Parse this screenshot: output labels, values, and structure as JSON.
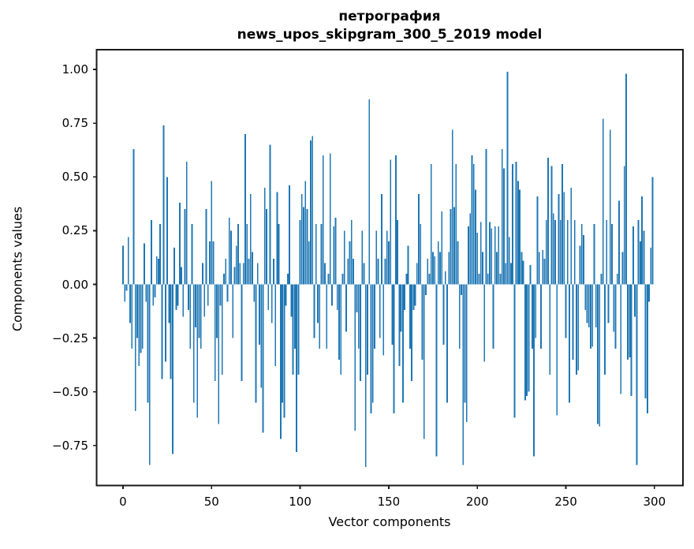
{
  "figure": {
    "title_line1": "петрография",
    "title_line2": "news_upos_skipgram_300_5_2019 model"
  },
  "chart_data": {
    "type": "bar",
    "title": "петрография",
    "subtitle": "news_upos_skipgram_300_5_2019 model",
    "xlabel": "Vector components",
    "ylabel": "Components values",
    "x_tick_values": [
      0,
      50,
      100,
      150,
      200,
      250,
      300
    ],
    "x_tick_labels": [
      "0",
      "50",
      "100",
      "150",
      "200",
      "250",
      "300"
    ],
    "y_tick_values": [
      1.0,
      0.75,
      0.5,
      0.25,
      0.0,
      -0.25,
      -0.5,
      -0.75
    ],
    "y_tick_labels": [
      "1.00",
      "0.75",
      "0.50",
      "0.25",
      "0.00",
      "−0.25",
      "−0.50",
      "−0.75"
    ],
    "xlim": [
      -14.9,
      316.1
    ],
    "ylim": [
      -0.936,
      1.092
    ],
    "grid": false,
    "legend": "none",
    "bar_color": "#1f77b4",
    "bar_width": 0.8,
    "x_is_index": true,
    "values": [
      0.18,
      -0.08,
      -0.03,
      0.22,
      -0.18,
      -0.3,
      0.63,
      -0.59,
      -0.25,
      -0.38,
      -0.32,
      -0.3,
      0.19,
      -0.08,
      -0.55,
      -0.84,
      0.3,
      -0.1,
      -0.06,
      0.13,
      0.12,
      0.28,
      -0.44,
      0.74,
      -0.36,
      0.5,
      -0.18,
      -0.44,
      -0.79,
      0.17,
      -0.12,
      -0.1,
      0.38,
      0.08,
      -0.15,
      0.35,
      0.57,
      -0.12,
      -0.3,
      0.28,
      -0.55,
      -0.2,
      -0.62,
      -0.25,
      -0.3,
      0.1,
      -0.15,
      0.35,
      -0.1,
      0.2,
      0.48,
      0.2,
      -0.45,
      -0.25,
      -0.65,
      -0.1,
      -0.42,
      0.05,
      0.12,
      -0.08,
      0.31,
      0.25,
      -0.25,
      0.08,
      0.18,
      0.28,
      0.1,
      -0.45,
      0.1,
      0.7,
      0.28,
      0.12,
      0.42,
      0.15,
      -0.08,
      -0.55,
      0.1,
      -0.28,
      -0.48,
      -0.69,
      0.45,
      0.35,
      -0.12,
      0.65,
      -0.18,
      0.12,
      -0.38,
      0.43,
      0.28,
      -0.72,
      -0.55,
      -0.62,
      -0.1,
      0.05,
      0.46,
      -0.15,
      -0.42,
      -0.3,
      -0.78,
      -0.42,
      0.3,
      0.42,
      0.36,
      0.48,
      0.35,
      0.2,
      0.67,
      0.69,
      -0.25,
      0.28,
      -0.18,
      -0.3,
      0.28,
      0.6,
      0.1,
      -0.3,
      0.05,
      0.61,
      -0.1,
      0.27,
      0.31,
      -0.12,
      -0.35,
      -0.42,
      0.05,
      0.25,
      -0.22,
      0.12,
      0.2,
      0.3,
      0.12,
      -0.68,
      -0.13,
      -0.3,
      -0.45,
      0.25,
      0.1,
      -0.85,
      -0.42,
      0.86,
      -0.6,
      -0.55,
      -0.3,
      0.25,
      0.12,
      -0.25,
      0.42,
      -0.33,
      0.12,
      0.25,
      0.2,
      0.58,
      -0.28,
      -0.6,
      0.6,
      0.3,
      -0.38,
      -0.22,
      -0.55,
      -0.12,
      0.05,
      0.18,
      -0.3,
      -0.45,
      -0.12,
      -0.1,
      0.1,
      0.42,
      0.28,
      -0.35,
      -0.72,
      -0.05,
      0.12,
      0.05,
      0.56,
      0.15,
      0.13,
      -0.8,
      0.2,
      0.15,
      0.34,
      -0.28,
      0.06,
      -0.55,
      0.15,
      0.35,
      0.72,
      0.36,
      0.56,
      0.2,
      -0.3,
      -0.05,
      -0.84,
      -0.55,
      -0.64,
      0.27,
      0.33,
      0.6,
      0.56,
      0.44,
      0.24,
      0.05,
      0.29,
      0.15,
      -0.36,
      0.63,
      0.05,
      0.29,
      0.26,
      -0.3,
      0.27,
      0.15,
      0.27,
      0.05,
      0.63,
      0.54,
      0.1,
      0.99,
      0.22,
      0.1,
      0.56,
      -0.62,
      0.57,
      0.48,
      0.44,
      0.15,
      0.11,
      -0.54,
      -0.52,
      -0.5,
      0.09,
      -0.3,
      -0.8,
      -0.25,
      0.41,
      0.15,
      -0.3,
      0.16,
      0.12,
      0.3,
      0.59,
      -0.42,
      0.55,
      0.33,
      0.3,
      -0.61,
      0.42,
      0.3,
      0.56,
      0.43,
      -0.25,
      0.3,
      -0.55,
      0.45,
      -0.35,
      0.3,
      -0.42,
      -0.4,
      0.18,
      0.28,
      0.23,
      -0.12,
      -0.18,
      -0.2,
      -0.3,
      -0.29,
      0.28,
      -0.2,
      -0.65,
      -0.66,
      0.05,
      0.77,
      -0.42,
      0.3,
      -0.18,
      0.72,
      0.28,
      -0.22,
      -0.3,
      0.05,
      0.39,
      -0.51,
      0.15,
      0.55,
      0.98,
      -0.35,
      -0.34,
      -0.52,
      0.27,
      -0.15,
      -0.84,
      0.3,
      0.2,
      0.41,
      0.25,
      -0.53,
      -0.6,
      -0.08,
      0.17,
      0.5
    ]
  },
  "axes_style": {
    "spine_color": "#1a1a1a",
    "tick_color": "#1a1a1a",
    "background": "#ffffff"
  }
}
